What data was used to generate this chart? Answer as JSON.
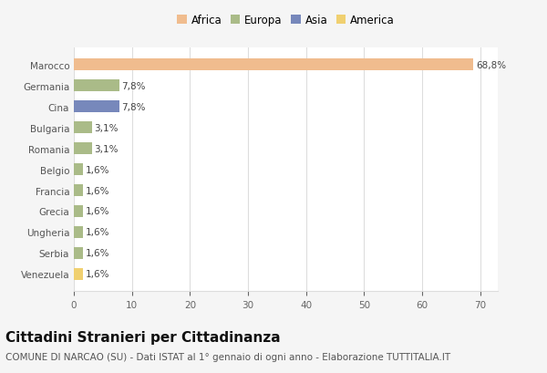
{
  "categories": [
    "Marocco",
    "Germania",
    "Cina",
    "Bulgaria",
    "Romania",
    "Belgio",
    "Francia",
    "Grecia",
    "Ungheria",
    "Serbia",
    "Venezuela"
  ],
  "values": [
    68.8,
    7.8,
    7.8,
    3.1,
    3.1,
    1.6,
    1.6,
    1.6,
    1.6,
    1.6,
    1.6
  ],
  "labels": [
    "68,8%",
    "7,8%",
    "7,8%",
    "3,1%",
    "3,1%",
    "1,6%",
    "1,6%",
    "1,6%",
    "1,6%",
    "1,6%",
    "1,6%"
  ],
  "colors": [
    "#F0BC8E",
    "#AABB88",
    "#7788BB",
    "#AABB88",
    "#AABB88",
    "#AABB88",
    "#AABB88",
    "#AABB88",
    "#AABB88",
    "#AABB88",
    "#F0D070"
  ],
  "legend": [
    {
      "label": "Africa",
      "color": "#F0BC8E"
    },
    {
      "label": "Europa",
      "color": "#AABB88"
    },
    {
      "label": "Asia",
      "color": "#7788BB"
    },
    {
      "label": "America",
      "color": "#F0D070"
    }
  ],
  "xlim": [
    0,
    73
  ],
  "xticks": [
    0,
    10,
    20,
    30,
    40,
    50,
    60,
    70
  ],
  "title": "Cittadini Stranieri per Cittadinanza",
  "subtitle": "COMUNE DI NARCAO (SU) - Dati ISTAT al 1° gennaio di ogni anno - Elaborazione TUTTITALIA.IT",
  "background_color": "#f5f5f5",
  "bar_background": "#ffffff",
  "grid_color": "#dddddd",
  "title_fontsize": 11,
  "subtitle_fontsize": 7.5,
  "label_fontsize": 7.5,
  "tick_fontsize": 7.5,
  "legend_fontsize": 8.5
}
